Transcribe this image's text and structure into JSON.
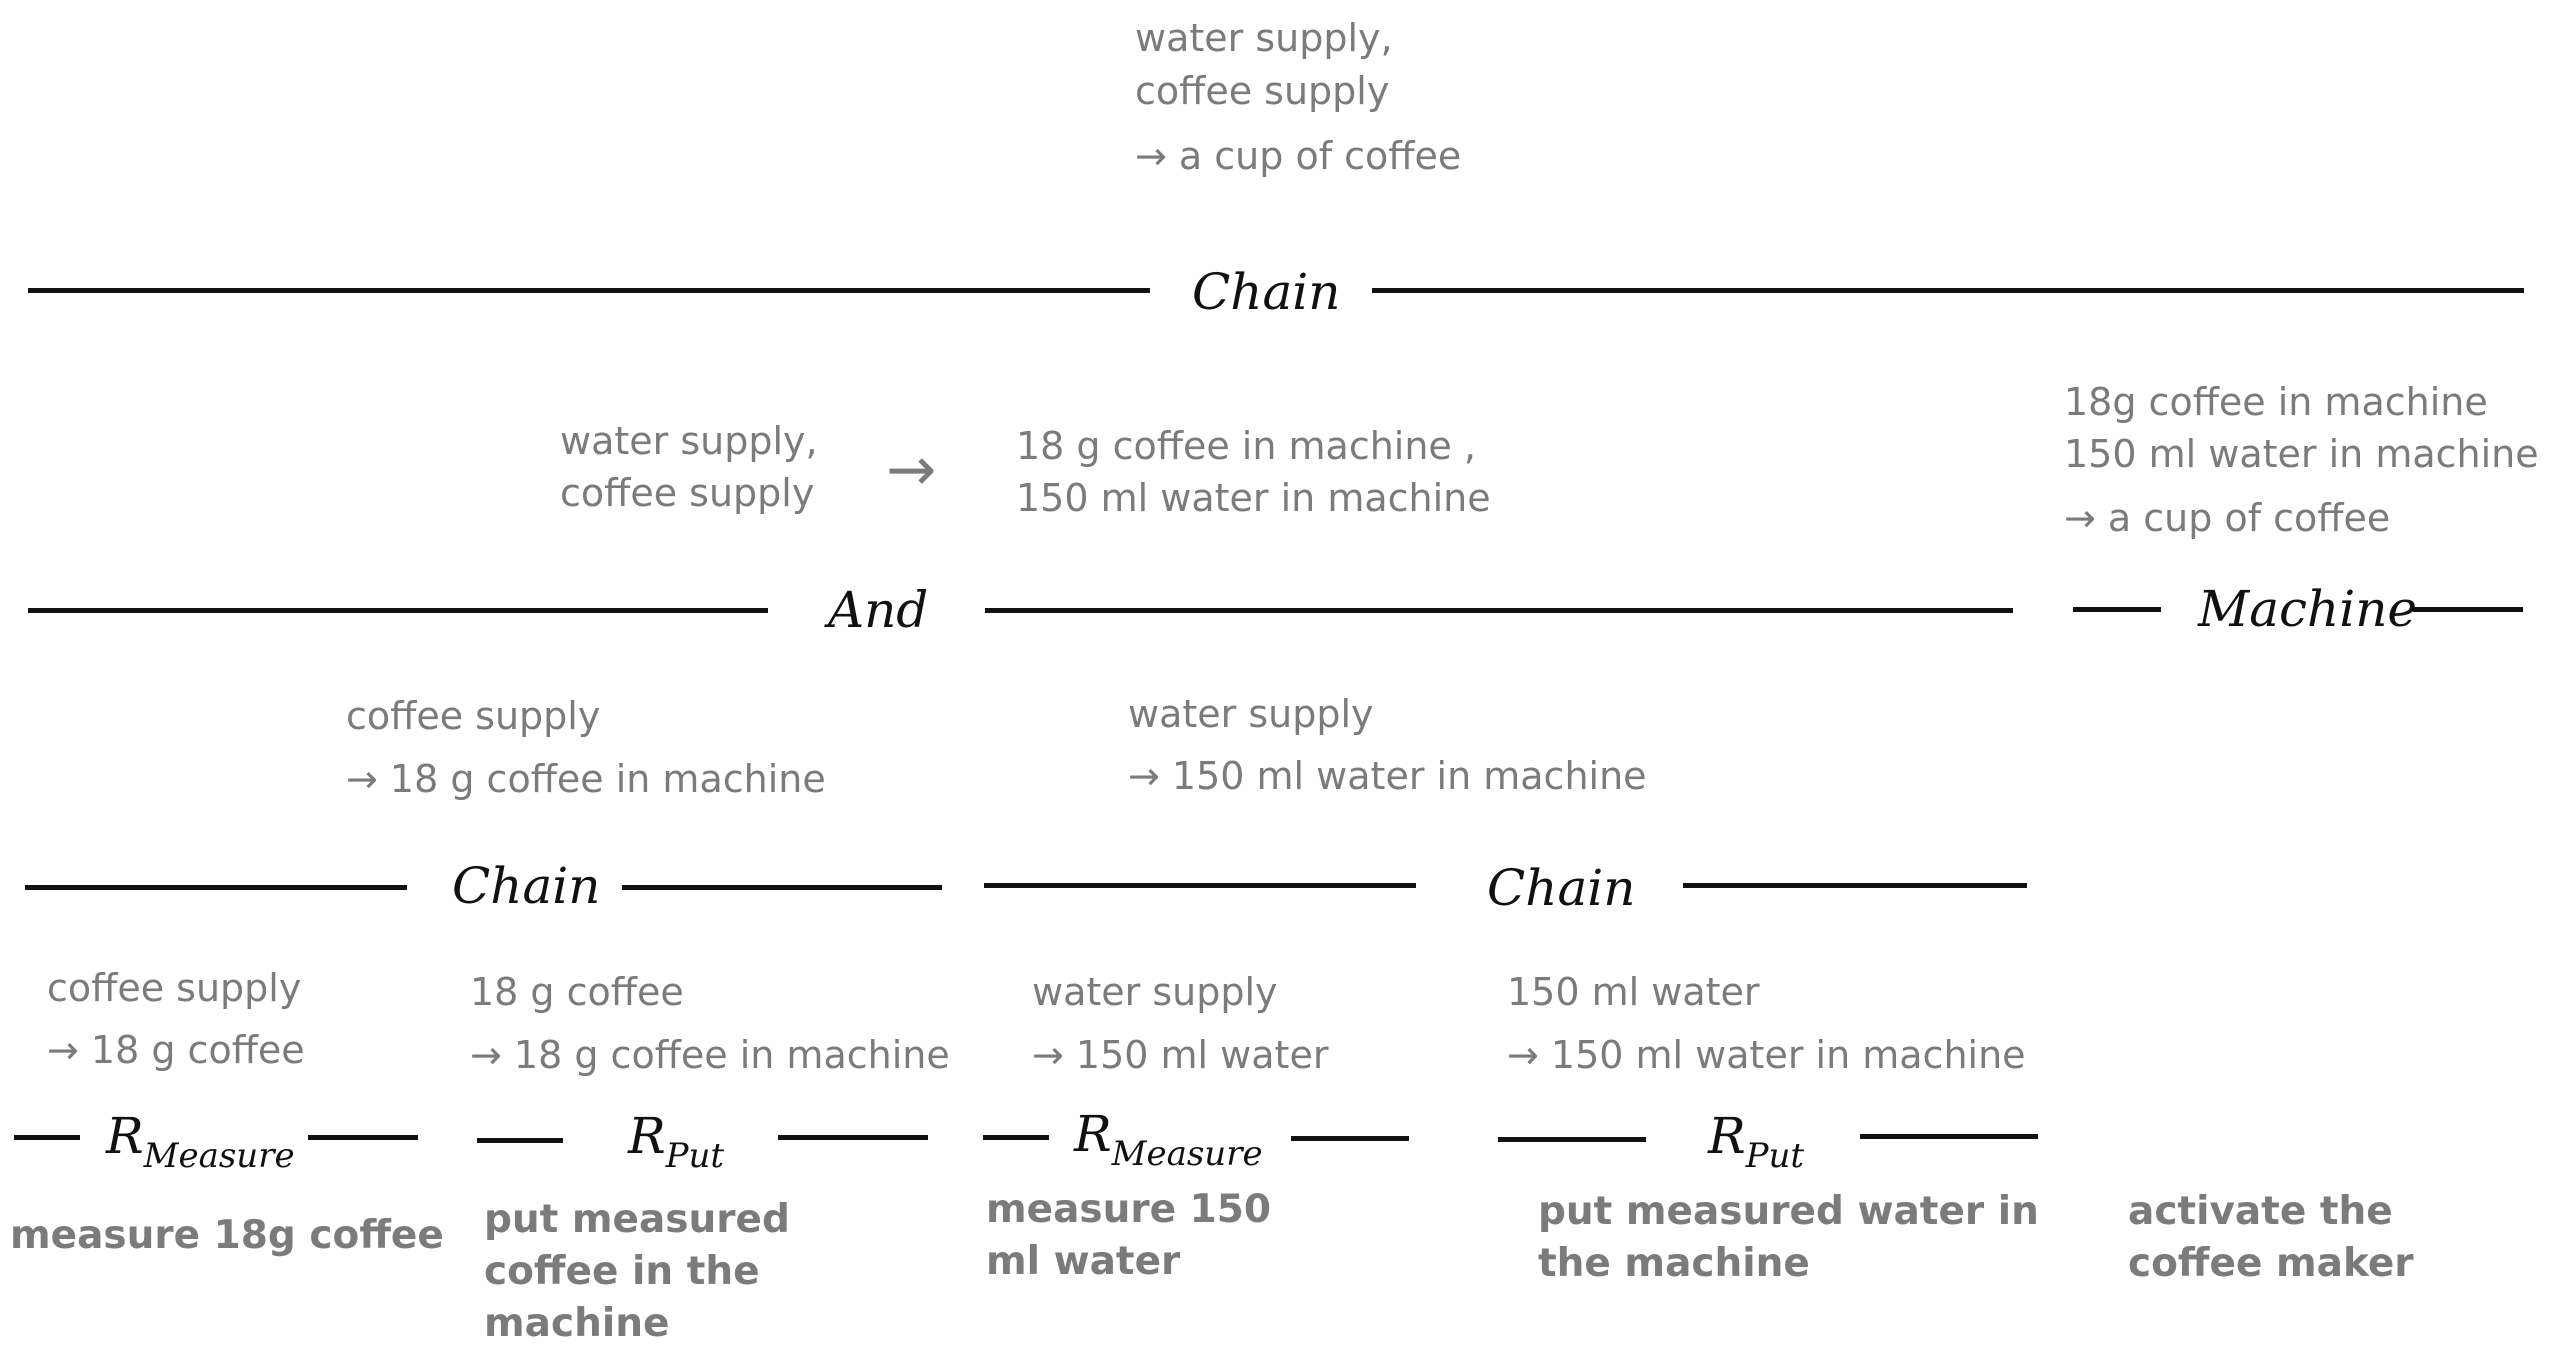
{
  "colors": {
    "text": "#7b7b7b",
    "rule": "#111111"
  },
  "chain_top": {
    "line1": "water supply,",
    "line2": "coffee supply",
    "line3": "→ a cup of coffee",
    "label": "Chain"
  },
  "and_node": {
    "left1": "water supply,",
    "left2": "coffee supply",
    "arrow": "→",
    "right1": "18 g coffee in machine ,",
    "right2": "150 ml water in machine",
    "label": "And"
  },
  "machine_node": {
    "line1": "18g coffee in machine",
    "line2": "150 ml water in machine",
    "line3": "→ a cup of coffee",
    "label": "Machine"
  },
  "chain_left": {
    "line1": "coffee supply",
    "line2": "→ 18 g coffee in machine",
    "label": "Chain"
  },
  "chain_right": {
    "line1": "water supply",
    "line2": "→ 150 ml water in machine",
    "label": "Chain"
  },
  "leaf1": {
    "line1": "coffee supply",
    "line2": "→ 18 g coffee",
    "label_r": "R",
    "label_sub": "Measure",
    "action": "measure 18g coffee"
  },
  "leaf2": {
    "line1": "18 g coffee",
    "line2": "→ 18 g coffee in machine",
    "label_r": "R",
    "label_sub": "Put",
    "action": "put measured coffee in the machine"
  },
  "leaf3": {
    "line1": "water supply",
    "line2": "→ 150 ml water",
    "label_r": "R",
    "label_sub": "Measure",
    "action": "measure 150 ml water"
  },
  "leaf4": {
    "line1": "150 ml water",
    "line2": "→ 150 ml water in machine",
    "label_r": "R",
    "label_sub": "Put",
    "action": "put measured water in the machine"
  },
  "leaf5": {
    "action": "activate the coffee maker"
  }
}
